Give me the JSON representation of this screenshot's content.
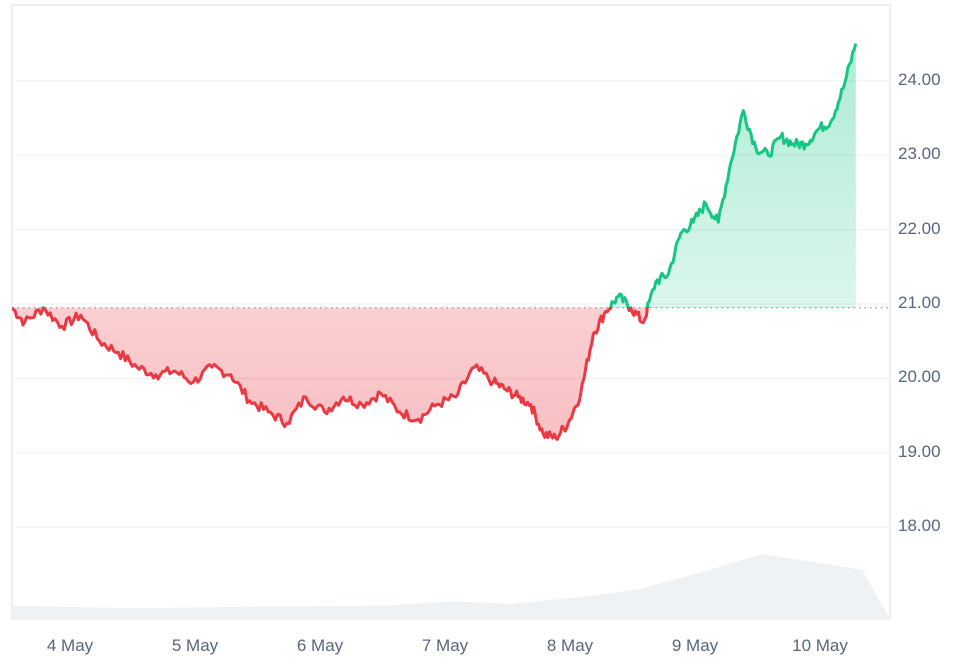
{
  "chart_data": {
    "type": "line",
    "title": "",
    "xlabel": "",
    "ylabel": "",
    "ylim": [
      17.0,
      24.7
    ],
    "grid": true,
    "legend": null,
    "baseline": 20.95,
    "colors": {
      "above": "#16c784",
      "below": "#ea3943",
      "volume": "#eff2f5",
      "grid": "#eff2f5",
      "axis_text": "#58667e"
    },
    "y_ticks": [
      "24.00",
      "23.00",
      "22.00",
      "21.00",
      "20.00",
      "19.00",
      "18.00"
    ],
    "x_ticks": [
      "4 May",
      "5 May",
      "6 May",
      "7 May",
      "8 May",
      "9 May",
      "10 May"
    ],
    "series": [
      {
        "name": "Price",
        "x_day_offsets": [
          0.0,
          0.1,
          0.25,
          0.4,
          0.55,
          0.7,
          0.85,
          1.0,
          1.15,
          1.3,
          1.45,
          1.6,
          1.75,
          1.9,
          2.05,
          2.2,
          2.35,
          2.5,
          2.65,
          2.8,
          2.95,
          3.1,
          3.25,
          3.4,
          3.55,
          3.7,
          3.85,
          3.95,
          4.05,
          4.15,
          4.25,
          4.35,
          4.45,
          4.55,
          4.65,
          4.75,
          4.85,
          4.95,
          5.05,
          5.15,
          5.25,
          5.35,
          5.45,
          5.55,
          5.65,
          5.75,
          5.85,
          5.95,
          6.05,
          6.15,
          6.25,
          6.35,
          6.45,
          6.55,
          6.65,
          6.75
        ],
        "values": [
          20.95,
          20.75,
          20.95,
          20.7,
          20.85,
          20.5,
          20.35,
          20.15,
          20.05,
          20.1,
          19.95,
          20.15,
          20.05,
          19.7,
          19.55,
          19.4,
          19.75,
          19.55,
          19.75,
          19.65,
          19.8,
          19.55,
          19.45,
          19.65,
          19.75,
          20.15,
          19.95,
          19.85,
          19.75,
          19.65,
          19.25,
          19.2,
          19.4,
          19.8,
          20.6,
          20.9,
          21.1,
          20.95,
          20.75,
          21.3,
          21.4,
          21.95,
          22.1,
          22.35,
          22.1,
          22.9,
          23.6,
          23.1,
          23.0,
          23.25,
          23.15,
          23.15,
          23.35,
          23.45,
          23.9,
          24.5
        ]
      },
      {
        "name": "Volume",
        "x_day_offsets": [
          0.0,
          1.0,
          2.0,
          3.0,
          3.5,
          4.0,
          4.5,
          5.0,
          5.5,
          6.0,
          6.5,
          6.8
        ],
        "relative_height": [
          0.15,
          0.12,
          0.14,
          0.15,
          0.2,
          0.17,
          0.24,
          0.33,
          0.52,
          0.73,
          0.62,
          0.55
        ]
      }
    ]
  }
}
